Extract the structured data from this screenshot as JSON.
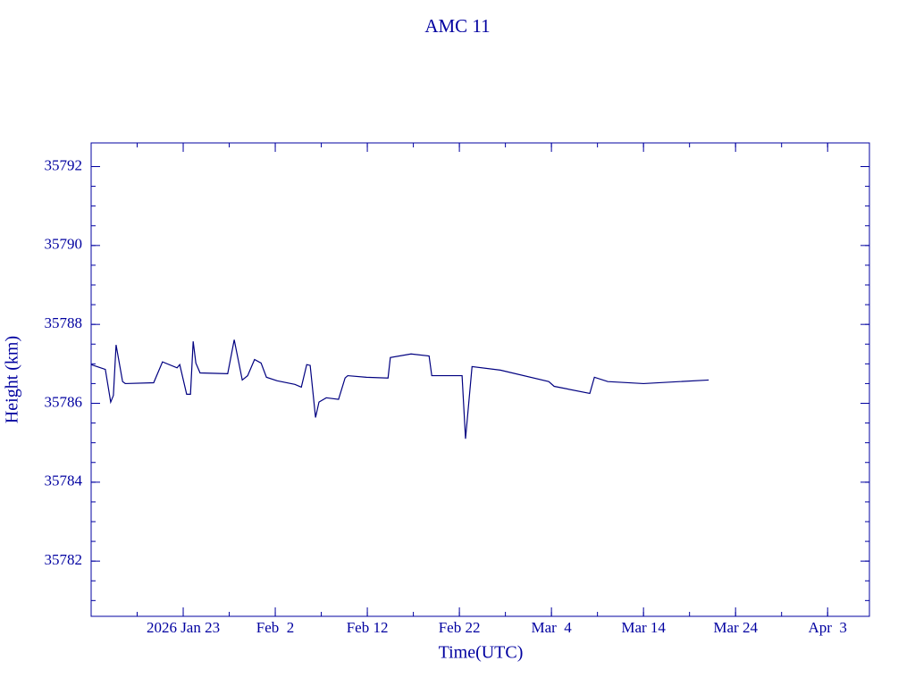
{
  "chart_data": {
    "type": "line",
    "title": "AMC 11",
    "x_label": "Time(UTC)",
    "y_label": "Height (km)",
    "xlim": [
      "2026-01-13T00:00",
      "2026-04-07T13:00"
    ],
    "xticks": [
      {
        "value": "2026-01-23T00:00",
        "label": "2026 Jan 23"
      },
      {
        "value": "2026-02-02T00:00",
        "label": "Feb  2"
      },
      {
        "value": "2026-02-12T00:00",
        "label": "Feb 12"
      },
      {
        "value": "2026-02-22T00:00",
        "label": "Feb 22"
      },
      {
        "value": "2026-03-04T00:00",
        "label": "Mar  4"
      },
      {
        "value": "2026-03-14T00:00",
        "label": "Mar 14"
      },
      {
        "value": "2026-03-24T00:00",
        "label": "Mar 24"
      },
      {
        "value": "2026-04-03T00:00",
        "label": "Apr  3"
      }
    ],
    "ylim": [
      35780.6,
      35792.6
    ],
    "yticks": [
      35782,
      35784,
      35786,
      35788,
      35790,
      35792
    ],
    "color": "#000080",
    "x": [
      "2026-01-13T00:00",
      "2026-01-14T13:00",
      "2026-01-15T03:00",
      "2026-01-15T10:00",
      "2026-01-15T17:00",
      "2026-01-16T10:00",
      "2026-01-16T17:00",
      "2026-01-19T19:00",
      "2026-01-20T18:00",
      "2026-01-22T08:00",
      "2026-01-22T15:00",
      "2026-01-23T09:00",
      "2026-01-23T19:00",
      "2026-01-24T02:00",
      "2026-01-24T09:00",
      "2026-01-24T20:00",
      "2026-01-27T20:00",
      "2026-01-28T13:00",
      "2026-01-29T10:00",
      "2026-01-30T00:00",
      "2026-01-30T18:00",
      "2026-01-31T11:00",
      "2026-02-01T01:00",
      "2026-02-02T05:00",
      "2026-02-04T03:00",
      "2026-02-04T20:00",
      "2026-02-05T10:00",
      "2026-02-05T19:00",
      "2026-02-06T09:00",
      "2026-02-06T18:00",
      "2026-02-07T13:00",
      "2026-02-08T21:00",
      "2026-02-09T14:00",
      "2026-02-09T21:00",
      "2026-02-11T22:00",
      "2026-02-14T06:00",
      "2026-02-14T12:00",
      "2026-02-16T18:00",
      "2026-02-18T17:00",
      "2026-02-19T00:00",
      "2026-02-22T07:00",
      "2026-02-22T16:00",
      "2026-02-23T09:00",
      "2026-02-26T11:00",
      "2026-03-03T17:00",
      "2026-03-04T07:00",
      "2026-03-08T04:00",
      "2026-03-08T16:00",
      "2026-03-10T03:00",
      "2026-03-14T00:00",
      "2026-03-21T02:00"
    ],
    "values": [
      35786.98,
      35786.86,
      35786.03,
      35786.2,
      35787.48,
      35786.55,
      35786.5,
      35786.52,
      35787.05,
      35786.9,
      35786.98,
      35786.23,
      35786.23,
      35787.57,
      35787.02,
      35786.77,
      35786.75,
      35787.61,
      35786.59,
      35786.7,
      35787.11,
      35787.02,
      35786.66,
      35786.57,
      35786.48,
      35786.41,
      35786.98,
      35786.96,
      35785.64,
      35786.03,
      35786.14,
      35786.1,
      35786.64,
      35786.7,
      35786.66,
      35786.64,
      35787.16,
      35787.25,
      35787.2,
      35786.7,
      35786.7,
      35785.1,
      35786.93,
      35786.84,
      35786.55,
      35786.43,
      35786.25,
      35786.66,
      35786.55,
      35786.5,
      35786.59
    ]
  }
}
